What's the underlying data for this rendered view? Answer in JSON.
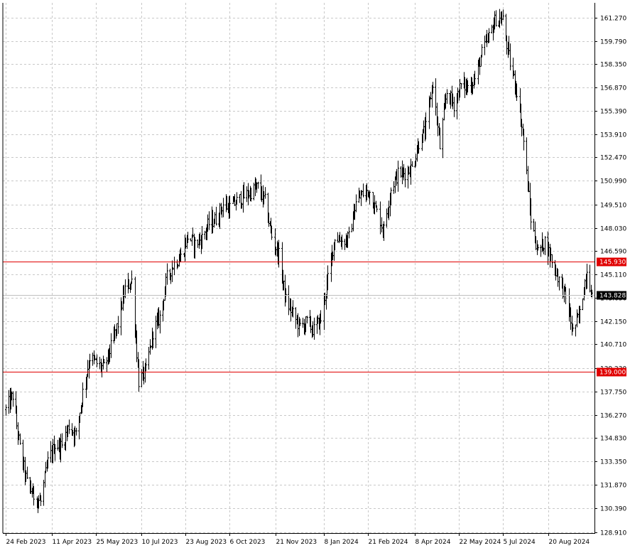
{
  "chart_data": {
    "type": "bar",
    "style": "ohlc",
    "x_ticks": [
      "24 Feb 2023",
      "11 Apr 2023",
      "25 May 2023",
      "10 Jul 2023",
      "23 Aug 2023",
      "6 Oct 2023",
      "21 Nov 2023",
      "8 Jan 2024",
      "21 Feb 2024",
      "8 Apr 2024",
      "22 May 2024",
      "5 Jul 2024",
      "20 Aug 2024"
    ],
    "y_ticks": [
      "161.270",
      "159.790",
      "158.350",
      "156.870",
      "155.390",
      "153.910",
      "152.470",
      "150.990",
      "149.510",
      "148.030",
      "146.590",
      "145.110",
      "143.630",
      "142.150",
      "140.710",
      "139.230",
      "137.750",
      "136.270",
      "134.830",
      "133.350",
      "131.870",
      "130.390",
      "128.910"
    ],
    "ylim": [
      128.91,
      161.27
    ],
    "grid": true,
    "grid_style": "dashed",
    "lines": [
      {
        "label": "145.930",
        "value": 145.93,
        "color": "#e00000"
      },
      {
        "label": "139.000",
        "value": 139.0,
        "color": "#e00000"
      }
    ],
    "current_price": {
      "label": "143.828",
      "value": 143.828,
      "color": "#000000",
      "line_color": "#c0c0c0"
    },
    "anchors": [
      [
        "2023-02-24",
        136.6
      ],
      [
        "2023-03-03",
        137.5
      ],
      [
        "2023-03-10",
        134.2
      ],
      [
        "2023-03-17",
        132.0
      ],
      [
        "2023-03-24",
        131.2
      ],
      [
        "2023-03-31",
        130.8
      ],
      [
        "2023-04-07",
        133.3
      ],
      [
        "2023-04-14",
        134.4
      ],
      [
        "2023-04-21",
        134.3
      ],
      [
        "2023-04-28",
        135.6
      ],
      [
        "2023-05-05",
        135.0
      ],
      [
        "2023-05-12",
        137.7
      ],
      [
        "2023-05-19",
        139.9
      ],
      [
        "2023-05-26",
        139.5
      ],
      [
        "2023-06-02",
        139.2
      ],
      [
        "2023-06-09",
        140.5
      ],
      [
        "2023-06-16",
        142.0
      ],
      [
        "2023-06-23",
        144.2
      ],
      [
        "2023-06-30",
        144.7
      ],
      [
        "2023-07-07",
        138.4
      ],
      [
        "2023-07-14",
        139.0
      ],
      [
        "2023-07-21",
        141.5
      ],
      [
        "2023-07-28",
        142.4
      ],
      [
        "2023-08-04",
        144.9
      ],
      [
        "2023-08-11",
        145.8
      ],
      [
        "2023-08-18",
        146.2
      ],
      [
        "2023-08-25",
        147.5
      ],
      [
        "2023-09-01",
        147.0
      ],
      [
        "2023-09-08",
        147.4
      ],
      [
        "2023-09-15",
        148.3
      ],
      [
        "2023-09-22",
        148.6
      ],
      [
        "2023-09-29",
        149.5
      ],
      [
        "2023-10-06",
        149.3
      ],
      [
        "2023-10-13",
        149.7
      ],
      [
        "2023-10-20",
        150.0
      ],
      [
        "2023-10-27",
        150.3
      ],
      [
        "2023-11-03",
        150.6
      ],
      [
        "2023-11-10",
        149.7
      ],
      [
        "2023-11-17",
        147.5
      ],
      [
        "2023-11-24",
        146.3
      ],
      [
        "2023-12-01",
        143.5
      ],
      [
        "2023-12-08",
        142.6
      ],
      [
        "2023-12-15",
        141.8
      ],
      [
        "2023-12-22",
        142.1
      ],
      [
        "2023-12-29",
        141.6
      ],
      [
        "2024-01-05",
        142.3
      ],
      [
        "2024-01-12",
        144.8
      ],
      [
        "2024-01-19",
        147.5
      ],
      [
        "2024-01-26",
        147.2
      ],
      [
        "2024-02-02",
        147.4
      ],
      [
        "2024-02-09",
        149.6
      ],
      [
        "2024-02-16",
        150.2
      ],
      [
        "2024-02-23",
        150.3
      ],
      [
        "2024-03-01",
        149.0
      ],
      [
        "2024-03-08",
        147.9
      ],
      [
        "2024-03-15",
        150.5
      ],
      [
        "2024-03-22",
        151.4
      ],
      [
        "2024-03-29",
        151.5
      ],
      [
        "2024-04-05",
        151.8
      ],
      [
        "2024-04-12",
        153.4
      ],
      [
        "2024-04-19",
        154.3
      ],
      [
        "2024-04-26",
        157.2
      ],
      [
        "2024-05-03",
        153.1
      ],
      [
        "2024-05-10",
        156.6
      ],
      [
        "2024-05-17",
        155.8
      ],
      [
        "2024-05-24",
        157.0
      ],
      [
        "2024-05-31",
        156.9
      ],
      [
        "2024-06-07",
        157.4
      ],
      [
        "2024-06-14",
        159.0
      ],
      [
        "2024-06-21",
        160.0
      ],
      [
        "2024-06-28",
        161.2
      ],
      [
        "2024-07-05",
        161.1
      ],
      [
        "2024-07-12",
        158.4
      ],
      [
        "2024-07-19",
        156.7
      ],
      [
        "2024-07-26",
        153.5
      ],
      [
        "2024-08-02",
        148.6
      ],
      [
        "2024-08-09",
        146.5
      ],
      [
        "2024-08-16",
        147.2
      ],
      [
        "2024-08-23",
        146.0
      ],
      [
        "2024-08-30",
        144.8
      ],
      [
        "2024-09-06",
        143.7
      ],
      [
        "2024-09-13",
        141.5
      ],
      [
        "2024-09-20",
        142.6
      ],
      [
        "2024-09-27",
        145.5
      ],
      [
        "2024-10-02",
        143.8
      ]
    ]
  }
}
